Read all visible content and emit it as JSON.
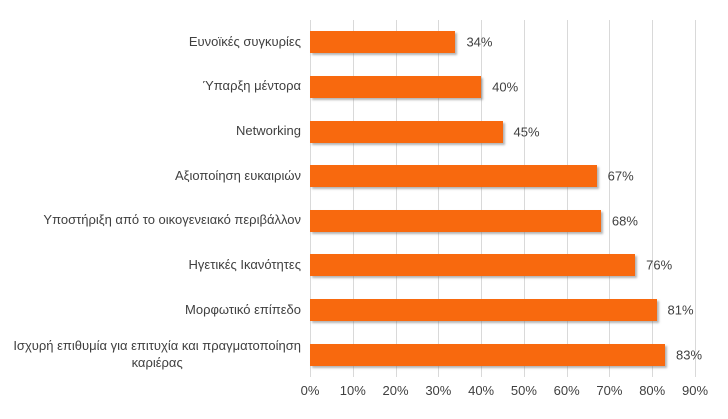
{
  "chart_data": {
    "type": "bar",
    "orientation": "horizontal",
    "title": "",
    "xlabel": "",
    "ylabel": "",
    "categories": [
      "Ευνοϊκές συγκυρίες",
      "Ύπαρξη μέντορα",
      "Networking",
      "Αξιοποίηση ευκαιριών",
      "Υποστήριξη από το οικογενειακό περιβάλλον",
      "Ηγετικές Ικανότητες",
      "Μορφωτικό επίπεδο",
      "Ισχυρή επιθυμία για επιτυχία και πραγματοποίηση\nκαριέρας"
    ],
    "values": [
      34,
      40,
      45,
      67,
      68,
      76,
      81,
      83
    ],
    "value_labels": [
      "34%",
      "40%",
      "45%",
      "67%",
      "68%",
      "76%",
      "81%",
      "83%"
    ],
    "xlim": [
      0,
      90
    ],
    "x_ticks": [
      "0%",
      "10%",
      "20%",
      "30%",
      "40%",
      "50%",
      "60%",
      "70%",
      "80%",
      "90%"
    ],
    "grid": "vertical-on",
    "legend": "none",
    "colors": {
      "bar": "#F8690E",
      "gridline": "#D9D9D9",
      "text": "#404040",
      "background": "#FFFFFF"
    }
  }
}
